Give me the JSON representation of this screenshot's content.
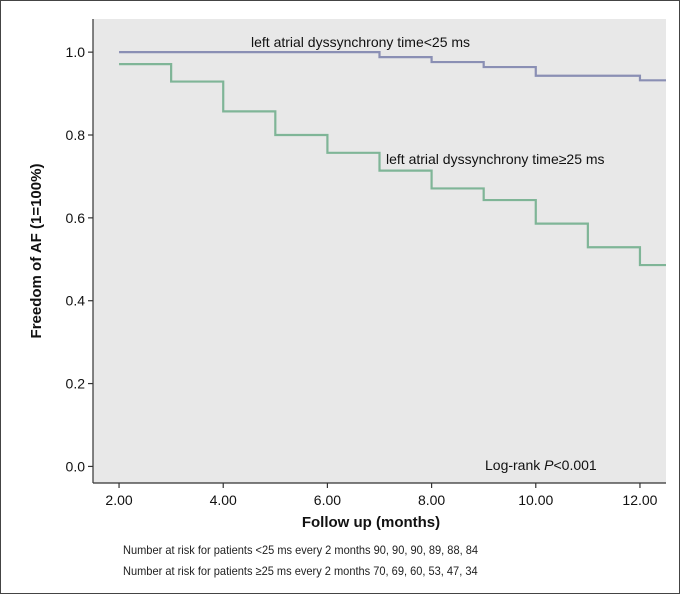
{
  "chart_data": {
    "type": "line",
    "subtype": "kaplan-meier",
    "xlabel": "Follow up (months)",
    "ylabel": "Freedom of AF (1=100%)",
    "xlim": [
      1.5,
      12.5
    ],
    "ylim": [
      -0.04,
      1.08
    ],
    "xticks": [
      "2.00",
      "4.00",
      "6.00",
      "8.00",
      "10.00",
      "12.00"
    ],
    "xtick_values": [
      2,
      4,
      6,
      8,
      10,
      12
    ],
    "yticks": [
      "0.0",
      "0.2",
      "0.4",
      "0.6",
      "0.8",
      "1.0"
    ],
    "ytick_values": [
      0.0,
      0.2,
      0.4,
      0.6,
      0.8,
      1.0
    ],
    "grid": false,
    "background": "#e8e8e8",
    "series": [
      {
        "name": "left atrial dyssynchrony time<25 ms",
        "color": "#8a8fb4",
        "step_x": [
          2,
          7,
          8,
          9,
          10,
          12,
          12.5
        ],
        "step_y": [
          1.0,
          0.988,
          0.976,
          0.964,
          0.943,
          0.932,
          0.932
        ]
      },
      {
        "name": "left atrial dyssynchrony time≥25 ms",
        "color": "#7fb597",
        "step_x": [
          2,
          3,
          4,
          5,
          6,
          7,
          8,
          9,
          10,
          11,
          12,
          12.5
        ],
        "step_y": [
          0.971,
          0.929,
          0.857,
          0.8,
          0.757,
          0.714,
          0.671,
          0.643,
          0.586,
          0.529,
          0.486,
          0.486
        ]
      }
    ],
    "annotations": {
      "series1_label": "left atrial dyssynchrony time<25 ms",
      "series2_label": "left atrial dyssynchrony time≥25 ms",
      "logrank_prefix": "Log-rank ",
      "logrank_p": "P",
      "logrank_value": "<0.001"
    }
  },
  "risk_table": {
    "row1": "Number at risk for patients <25 ms every 2 months 90, 90, 90, 89, 88, 84",
    "row2": "Number at risk for patients ≥25 ms every 2 months 70, 69, 60, 53, 47, 34"
  }
}
